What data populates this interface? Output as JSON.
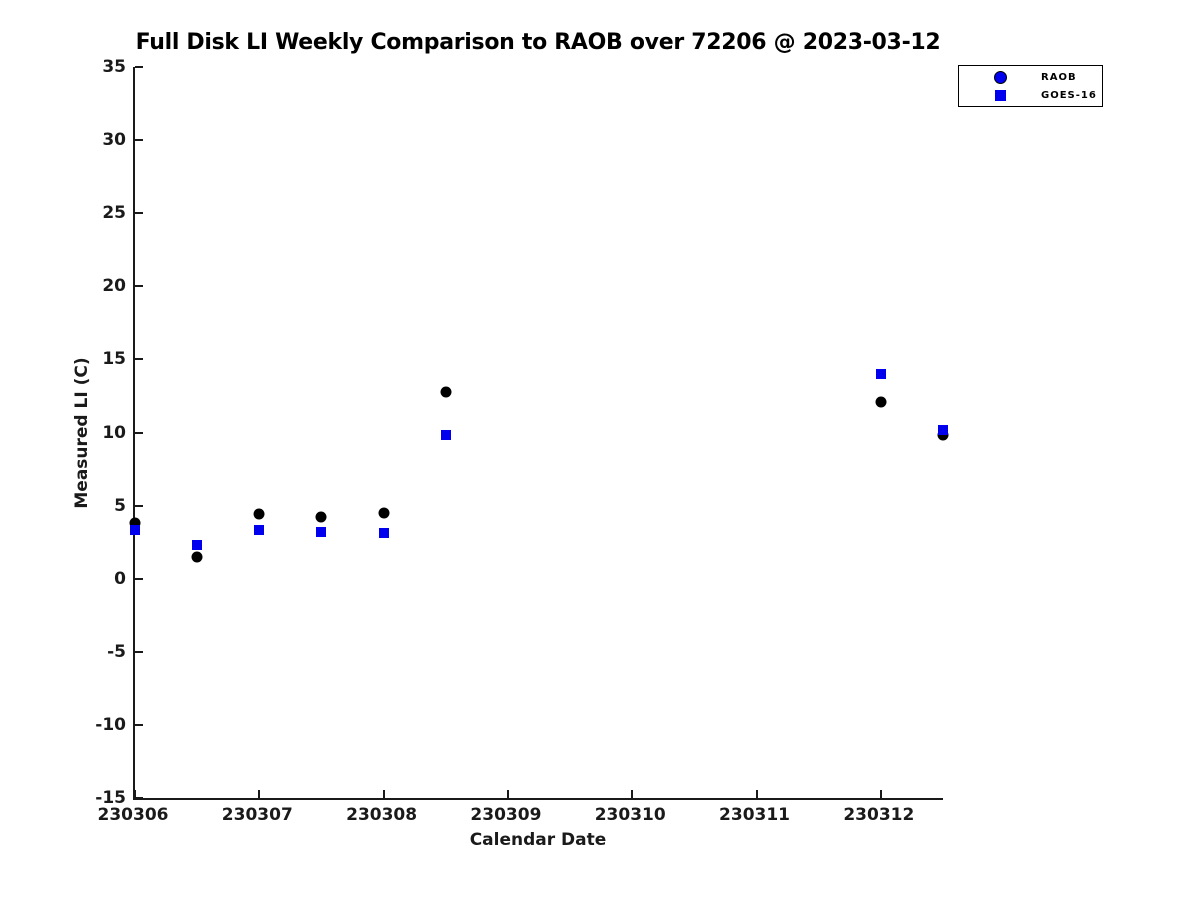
{
  "chart_data": {
    "type": "scatter",
    "title": "Full Disk LI Weekly Comparison to RAOB over 72206 @ 2023-03-12",
    "xlabel": "Calendar Date",
    "ylabel": "Measured LI (C)",
    "xlim": [
      230306,
      230312.5
    ],
    "ylim": [
      -15,
      35
    ],
    "x_ticks": [
      230306,
      230307,
      230308,
      230309,
      230310,
      230311,
      230312
    ],
    "y_ticks": [
      35,
      30,
      25,
      20,
      15,
      10,
      5,
      0,
      -5,
      -10,
      -15
    ],
    "grid": false,
    "legend_position": "top-right",
    "background_color": "#ffffff",
    "axis_color": "#1a1a1a",
    "series": [
      {
        "name": "RAOB",
        "marker": "circle",
        "plot_color": "#000000",
        "legend_fill": "#0000ee",
        "legend_edge": "#000000",
        "points": [
          [
            230306.0,
            3.8
          ],
          [
            230306.5,
            1.5
          ],
          [
            230307.0,
            4.4
          ],
          [
            230307.5,
            4.2
          ],
          [
            230308.0,
            4.5
          ],
          [
            230308.5,
            12.8
          ],
          [
            230312.0,
            12.1
          ],
          [
            230312.5,
            9.8
          ]
        ]
      },
      {
        "name": "GOES-16",
        "marker": "square",
        "plot_color": "#0000ee",
        "legend_fill": "#0000ee",
        "legend_edge": "#0000ee",
        "points": [
          [
            230306.0,
            3.3
          ],
          [
            230306.5,
            2.3
          ],
          [
            230307.0,
            3.3
          ],
          [
            230307.5,
            3.2
          ],
          [
            230308.0,
            3.1
          ],
          [
            230308.5,
            9.8
          ],
          [
            230312.0,
            14.0
          ],
          [
            230312.5,
            10.2
          ]
        ]
      }
    ]
  }
}
